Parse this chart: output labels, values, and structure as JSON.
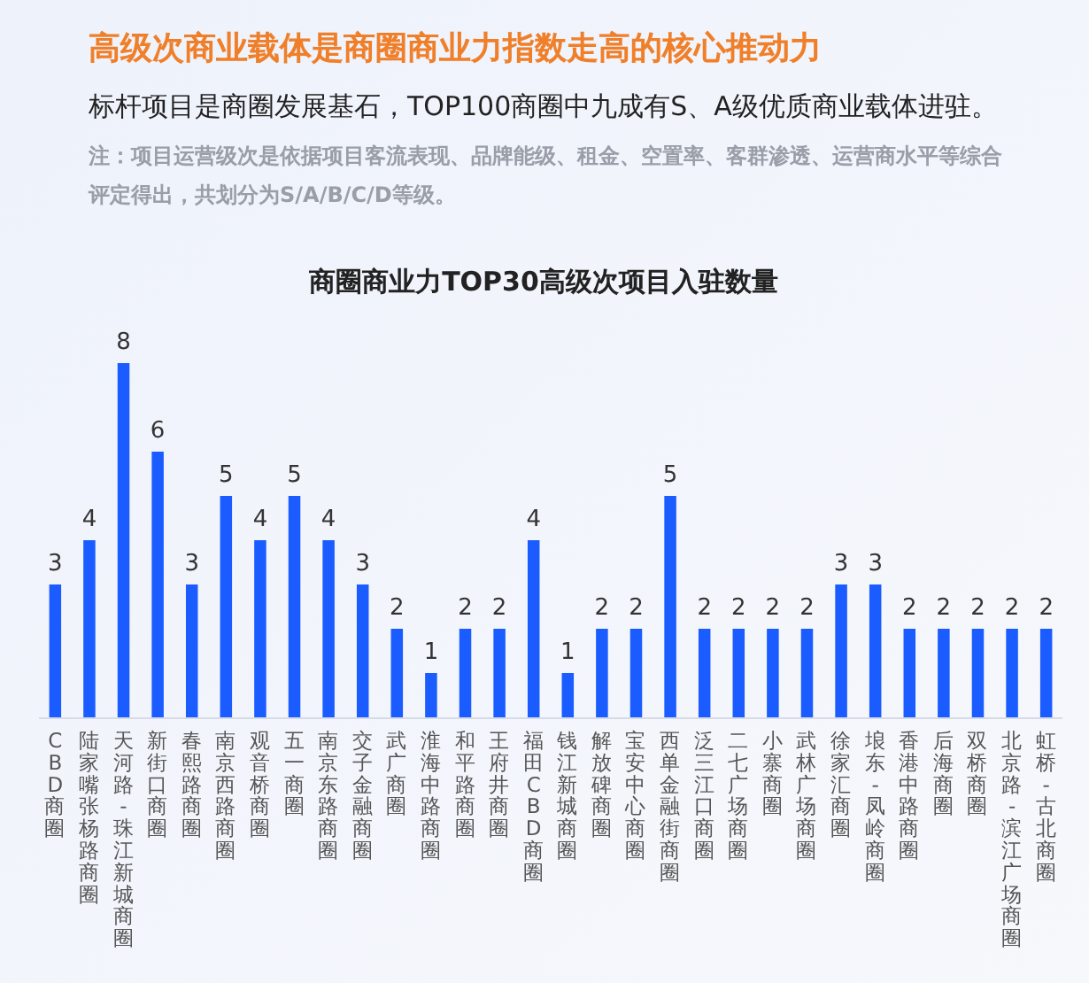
{
  "chart_data": {
    "type": "bar",
    "title": "高级次商业载体是商圈商业力指数走高的核心推动力",
    "subtitle": "标杆项目是商圈发展基石，TOP100商圈中九成有S、A级优质商业载体进驻。",
    "annotations": [
      "注：项目运营级次是依据项目客流表现、品牌能级、租金、空置率、客群渗透、运营商水平等综合评定得出，共划分为S/A/B/C/D等级。",
      "商圈商业力TOP30高级次项目入驻数量"
    ],
    "categories": [
      "CBD商圈",
      "陆家嘴张杨路商圈",
      "天河路-珠江新城商圈",
      "新街口商圈",
      "春熙路商圈",
      "南京西路商圈",
      "观音桥商圈",
      "五一商圈",
      "南京东路商圈",
      "交子金融商圈",
      "武广商圈",
      "淮海中路商圈",
      "和平路商圈",
      "王府井商圈",
      "福田CBD商圈",
      "钱江新城商圈",
      "解放碑商圈",
      "宝安中心商圈",
      "西单金融街商圈",
      "泛三江口商圈",
      "二七广场商圈",
      "小寨商圈",
      "武林广场商圈",
      "徐家汇商圈",
      "埌东-凤岭商圈",
      "香港中路商圈",
      "后海商圈",
      "双桥商圈",
      "北京路-滨江广场商圈",
      "虹桥-古北商圈"
    ],
    "values": [
      3,
      4,
      8,
      6,
      3,
      5,
      4,
      5,
      4,
      3,
      2,
      1,
      2,
      2,
      4,
      1,
      2,
      2,
      5,
      2,
      2,
      2,
      2,
      3,
      3,
      2,
      2,
      2,
      2,
      2
    ],
    "color": "#1a5cff",
    "data_labels": true
  }
}
